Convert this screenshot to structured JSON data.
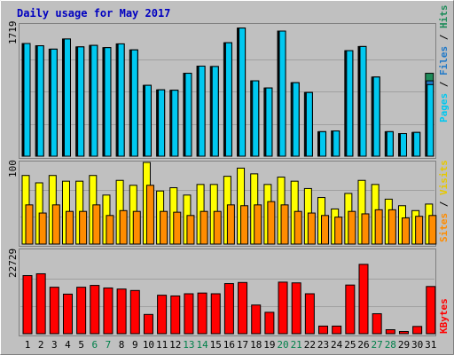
{
  "colors": {
    "background": "#c0c0c0",
    "title": "#0000c0",
    "pages": "#00c8f0",
    "files": "#1e78c8",
    "hits": "#1e8c5a",
    "visits": "#ffff00",
    "sites": "#ff8c00",
    "kbytes": "#ff0000",
    "weekend_day": "#00804a",
    "weekday_day": "#000000"
  },
  "chart_data": {
    "type": "bar",
    "title": "Daily usage for May 2017",
    "categories": [
      "1",
      "2",
      "3",
      "4",
      "5",
      "6",
      "7",
      "8",
      "9",
      "10",
      "11",
      "12",
      "13",
      "14",
      "15",
      "16",
      "17",
      "18",
      "19",
      "20",
      "21",
      "22",
      "23",
      "24",
      "25",
      "26",
      "27",
      "28",
      "29",
      "30",
      "31"
    ],
    "weekend_days": [
      "6",
      "7",
      "13",
      "14",
      "20",
      "21",
      "27",
      "28"
    ],
    "panels": [
      {
        "max_label": "1719",
        "ylim": [
          0,
          1719
        ],
        "series": [
          {
            "name": "Hits",
            "values": [
              1495,
              1465,
              1420,
              1555,
              1450,
              1470,
              1440,
              1490,
              1410,
              940,
              880,
              875,
              1100,
              1195,
              1190,
              1505,
              1700,
              1000,
              905,
              1660,
              975,
              845,
              325,
              335,
              1400,
              1455,
              1050,
              325,
              300,
              315,
              1100
            ]
          },
          {
            "name": "Files",
            "values": [
              1495,
              1465,
              1420,
              1555,
              1450,
              1470,
              1440,
              1490,
              1410,
              940,
              880,
              875,
              1100,
              1195,
              1190,
              1505,
              1700,
              1000,
              905,
              1660,
              975,
              845,
              325,
              335,
              1400,
              1455,
              1050,
              325,
              300,
              315,
              1000
            ]
          },
          {
            "name": "Pages",
            "values": [
              1495,
              1465,
              1420,
              1555,
              1450,
              1470,
              1440,
              1490,
              1410,
              940,
              880,
              875,
              1100,
              1195,
              1190,
              1505,
              1700,
              1000,
              905,
              1660,
              975,
              845,
              325,
              335,
              1400,
              1455,
              1050,
              325,
              300,
              315,
              950
            ]
          }
        ]
      },
      {
        "max_label": "100",
        "ylim": [
          0,
          100
        ],
        "series": [
          {
            "name": "Visits",
            "values": [
              84,
              75,
              84,
              77,
              77,
              84,
              60,
              78,
              72,
              100,
              65,
              69,
              60,
              73,
              73,
              83,
              93,
              86,
              73,
              82,
              77,
              68,
              57,
              43,
              62,
              78,
              73,
              55,
              47,
              41,
              49
            ]
          },
          {
            "name": "Sites",
            "values": [
              48,
              38,
              48,
              40,
              40,
              48,
              35,
              41,
              40,
              72,
              40,
              39,
              35,
              40,
              40,
              48,
              47,
              48,
              52,
              48,
              40,
              38,
              35,
              33,
              40,
              37,
              42,
              42,
              32,
              34,
              35
            ]
          }
        ]
      },
      {
        "max_label": "22729",
        "ylim": [
          0,
          22729
        ],
        "series": [
          {
            "name": "KBytes",
            "values": [
              16000,
              16500,
              12800,
              10900,
              12800,
              13300,
              12600,
              12300,
              11900,
              5300,
              10600,
              10400,
              11000,
              11200,
              11000,
              13800,
              14100,
              7900,
              5900,
              14200,
              14000,
              11000,
              2100,
              2100,
              13400,
              19100,
              5500,
              1100,
              600,
              2000,
              13000
            ]
          }
        ]
      }
    ],
    "side_labels": {
      "top": [
        "Pages",
        "Files",
        "Hits"
      ],
      "middle": [
        "Sites",
        "Visits"
      ],
      "bottom": [
        "KBytes"
      ],
      "separator": " / "
    }
  }
}
